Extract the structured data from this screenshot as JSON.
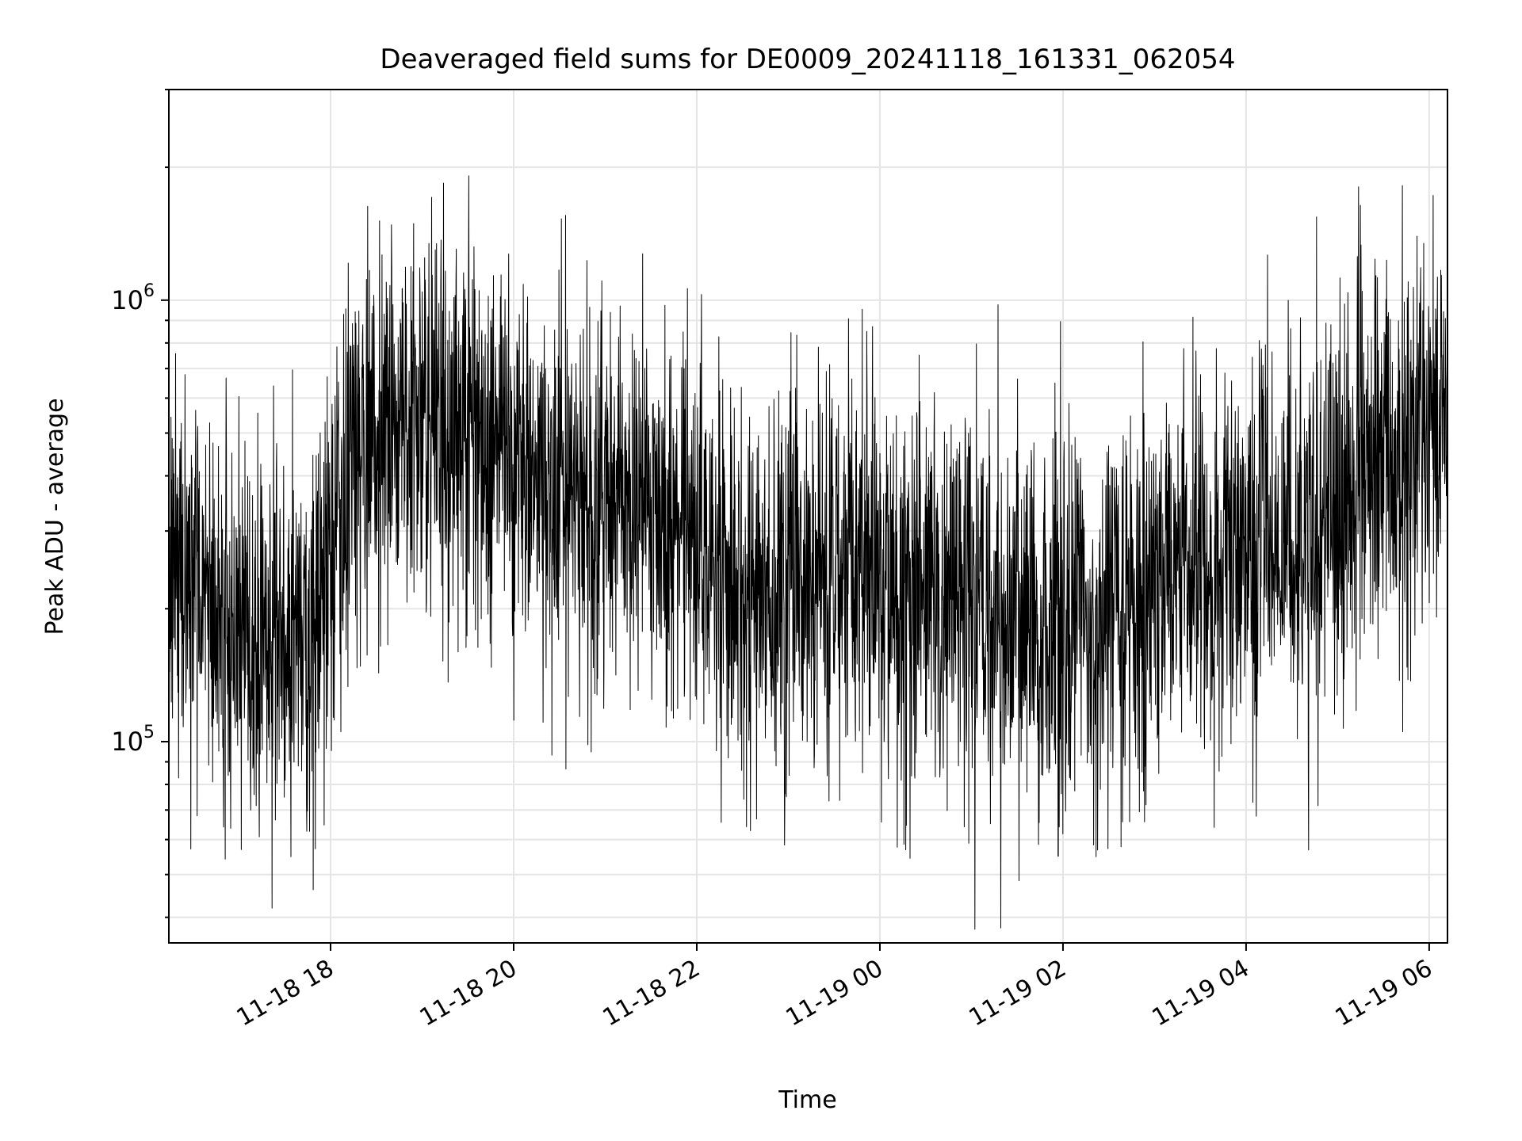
{
  "chart_data": {
    "type": "line",
    "title": "Deaveraged field sums for DE0009_20241118_161331_062054",
    "xlabel": "Time",
    "ylabel": "Peak ADU - average",
    "x_range": [
      "2024-11-18 16:14",
      "2024-11-19 06:12"
    ],
    "yscale": "log",
    "ylim": [
      35000,
      3000000
    ],
    "x_ticks": [
      "11-18 18",
      "11-18 20",
      "11-18 22",
      "11-19 00",
      "11-19 02",
      "11-19 04",
      "11-19 06"
    ],
    "y_ticks": [
      {
        "base": "10",
        "exponent": "5"
      },
      {
        "base": "10",
        "exponent": "6"
      }
    ],
    "grid": true,
    "line_color": "#000000",
    "series": [
      {
        "name": "",
        "sampling": "approximately every 10 s, dense noisy trace; local median level (ADU) listed below at ~30 min steps",
        "x": [
          "2024-11-18 16:15",
          "2024-11-18 16:45",
          "2024-11-18 17:15",
          "2024-11-18 17:45",
          "2024-11-18 18:15",
          "2024-11-18 18:45",
          "2024-11-18 19:15",
          "2024-11-18 19:45",
          "2024-11-18 20:15",
          "2024-11-18 20:45",
          "2024-11-18 21:15",
          "2024-11-18 21:45",
          "2024-11-18 22:15",
          "2024-11-18 22:45",
          "2024-11-18 23:15",
          "2024-11-18 23:45",
          "2024-11-19 00:15",
          "2024-11-19 00:45",
          "2024-11-19 01:15",
          "2024-11-19 01:45",
          "2024-11-19 02:15",
          "2024-11-19 02:45",
          "2024-11-19 03:15",
          "2024-11-19 03:45",
          "2024-11-19 04:15",
          "2024-11-19 04:45",
          "2024-11-19 05:15",
          "2024-11-19 05:45",
          "2024-11-19 06:10"
        ],
        "y": [
          250000,
          200000,
          150000,
          170000,
          450000,
          500000,
          550000,
          450000,
          400000,
          380000,
          350000,
          350000,
          230000,
          220000,
          250000,
          240000,
          230000,
          220000,
          200000,
          180000,
          190000,
          210000,
          230000,
          250000,
          280000,
          300000,
          400000,
          450000,
          500000
        ]
      }
    ]
  }
}
